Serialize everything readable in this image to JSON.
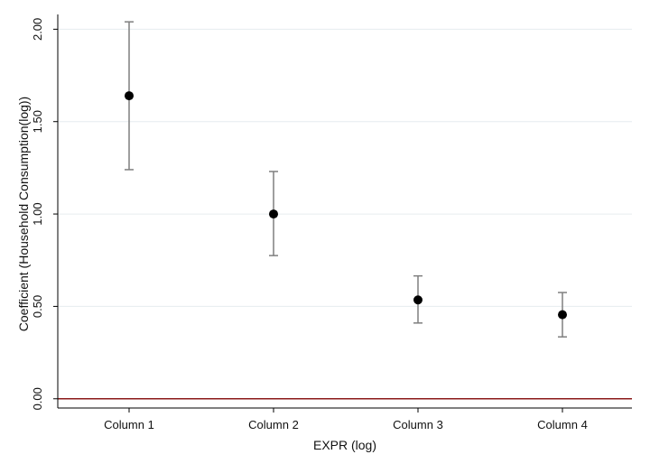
{
  "chart_data": {
    "type": "scatter",
    "title": "",
    "xlabel": "EXPR (log)",
    "ylabel": "Coefficient (Household Consumption(log))",
    "categories": [
      "Column 1",
      "Column 2",
      "Column 3",
      "Column 4"
    ],
    "yticks": [
      "0.00",
      "0.50",
      "1.00",
      "1.50",
      "2.00"
    ],
    "ylim": [
      -0.05,
      2.08
    ],
    "grid": true,
    "series": [
      {
        "values": [
          1.64,
          1.0,
          0.535,
          0.455
        ],
        "ci_low": [
          1.24,
          0.775,
          0.41,
          0.335
        ],
        "ci_high": [
          2.04,
          1.23,
          0.665,
          0.575
        ]
      }
    ],
    "reference_line": 0,
    "colors": {
      "marker": "#000000",
      "error_bar": "#7f7f7f",
      "reference_line": "#8b1a1a",
      "grid": "#e6ecef",
      "axis": "#000000"
    }
  }
}
